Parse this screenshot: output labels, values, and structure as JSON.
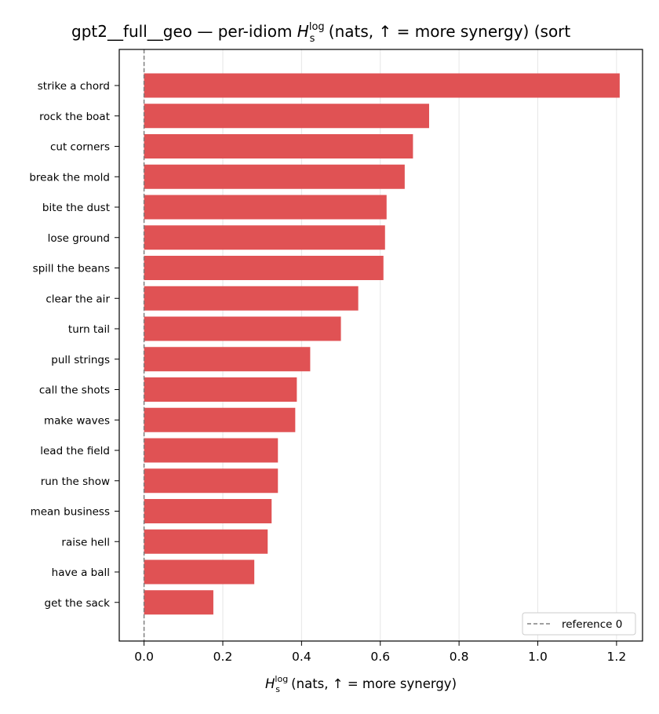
{
  "chart_data": {
    "type": "bar",
    "orientation": "horizontal",
    "title": {
      "prefix": "gpt2__full__geo — per-idiom ",
      "symbol": "H",
      "subscript": "s",
      "superscript": "log",
      "suffix": " (nats, ↑ = more synergy) (sort"
    },
    "xlabel": {
      "symbol": "H",
      "subscript": "s",
      "superscript": "log",
      "suffix": " (nats, ↑ = more synergy)"
    },
    "categories": [
      "strike a chord",
      "rock the boat",
      "cut corners",
      "break the mold",
      "bite the dust",
      "lose ground",
      "spill the beans",
      "clear the air",
      "turn tail",
      "pull strings",
      "call the shots",
      "make waves",
      "lead the field",
      "run the show",
      "mean business",
      "raise hell",
      "have a ball",
      "get the sack"
    ],
    "values": [
      1.208,
      0.724,
      0.683,
      0.662,
      0.616,
      0.612,
      0.608,
      0.544,
      0.5,
      0.422,
      0.388,
      0.384,
      0.34,
      0.34,
      0.324,
      0.314,
      0.28,
      0.176
    ],
    "xlim": [
      -0.063,
      1.266
    ],
    "xticks": [
      0.0,
      0.2,
      0.4,
      0.6,
      0.8,
      1.0,
      1.2
    ],
    "xtick_labels": [
      "0.0",
      "0.2",
      "0.4",
      "0.6",
      "0.8",
      "1.0",
      "1.2"
    ],
    "grid": "x-axis vertical lines",
    "reference_line": {
      "x": 0,
      "style": "dashed",
      "color": "#808080"
    },
    "legend": {
      "position": "lower-right",
      "entries": [
        "reference 0"
      ]
    },
    "bar_color": "#e05254"
  }
}
